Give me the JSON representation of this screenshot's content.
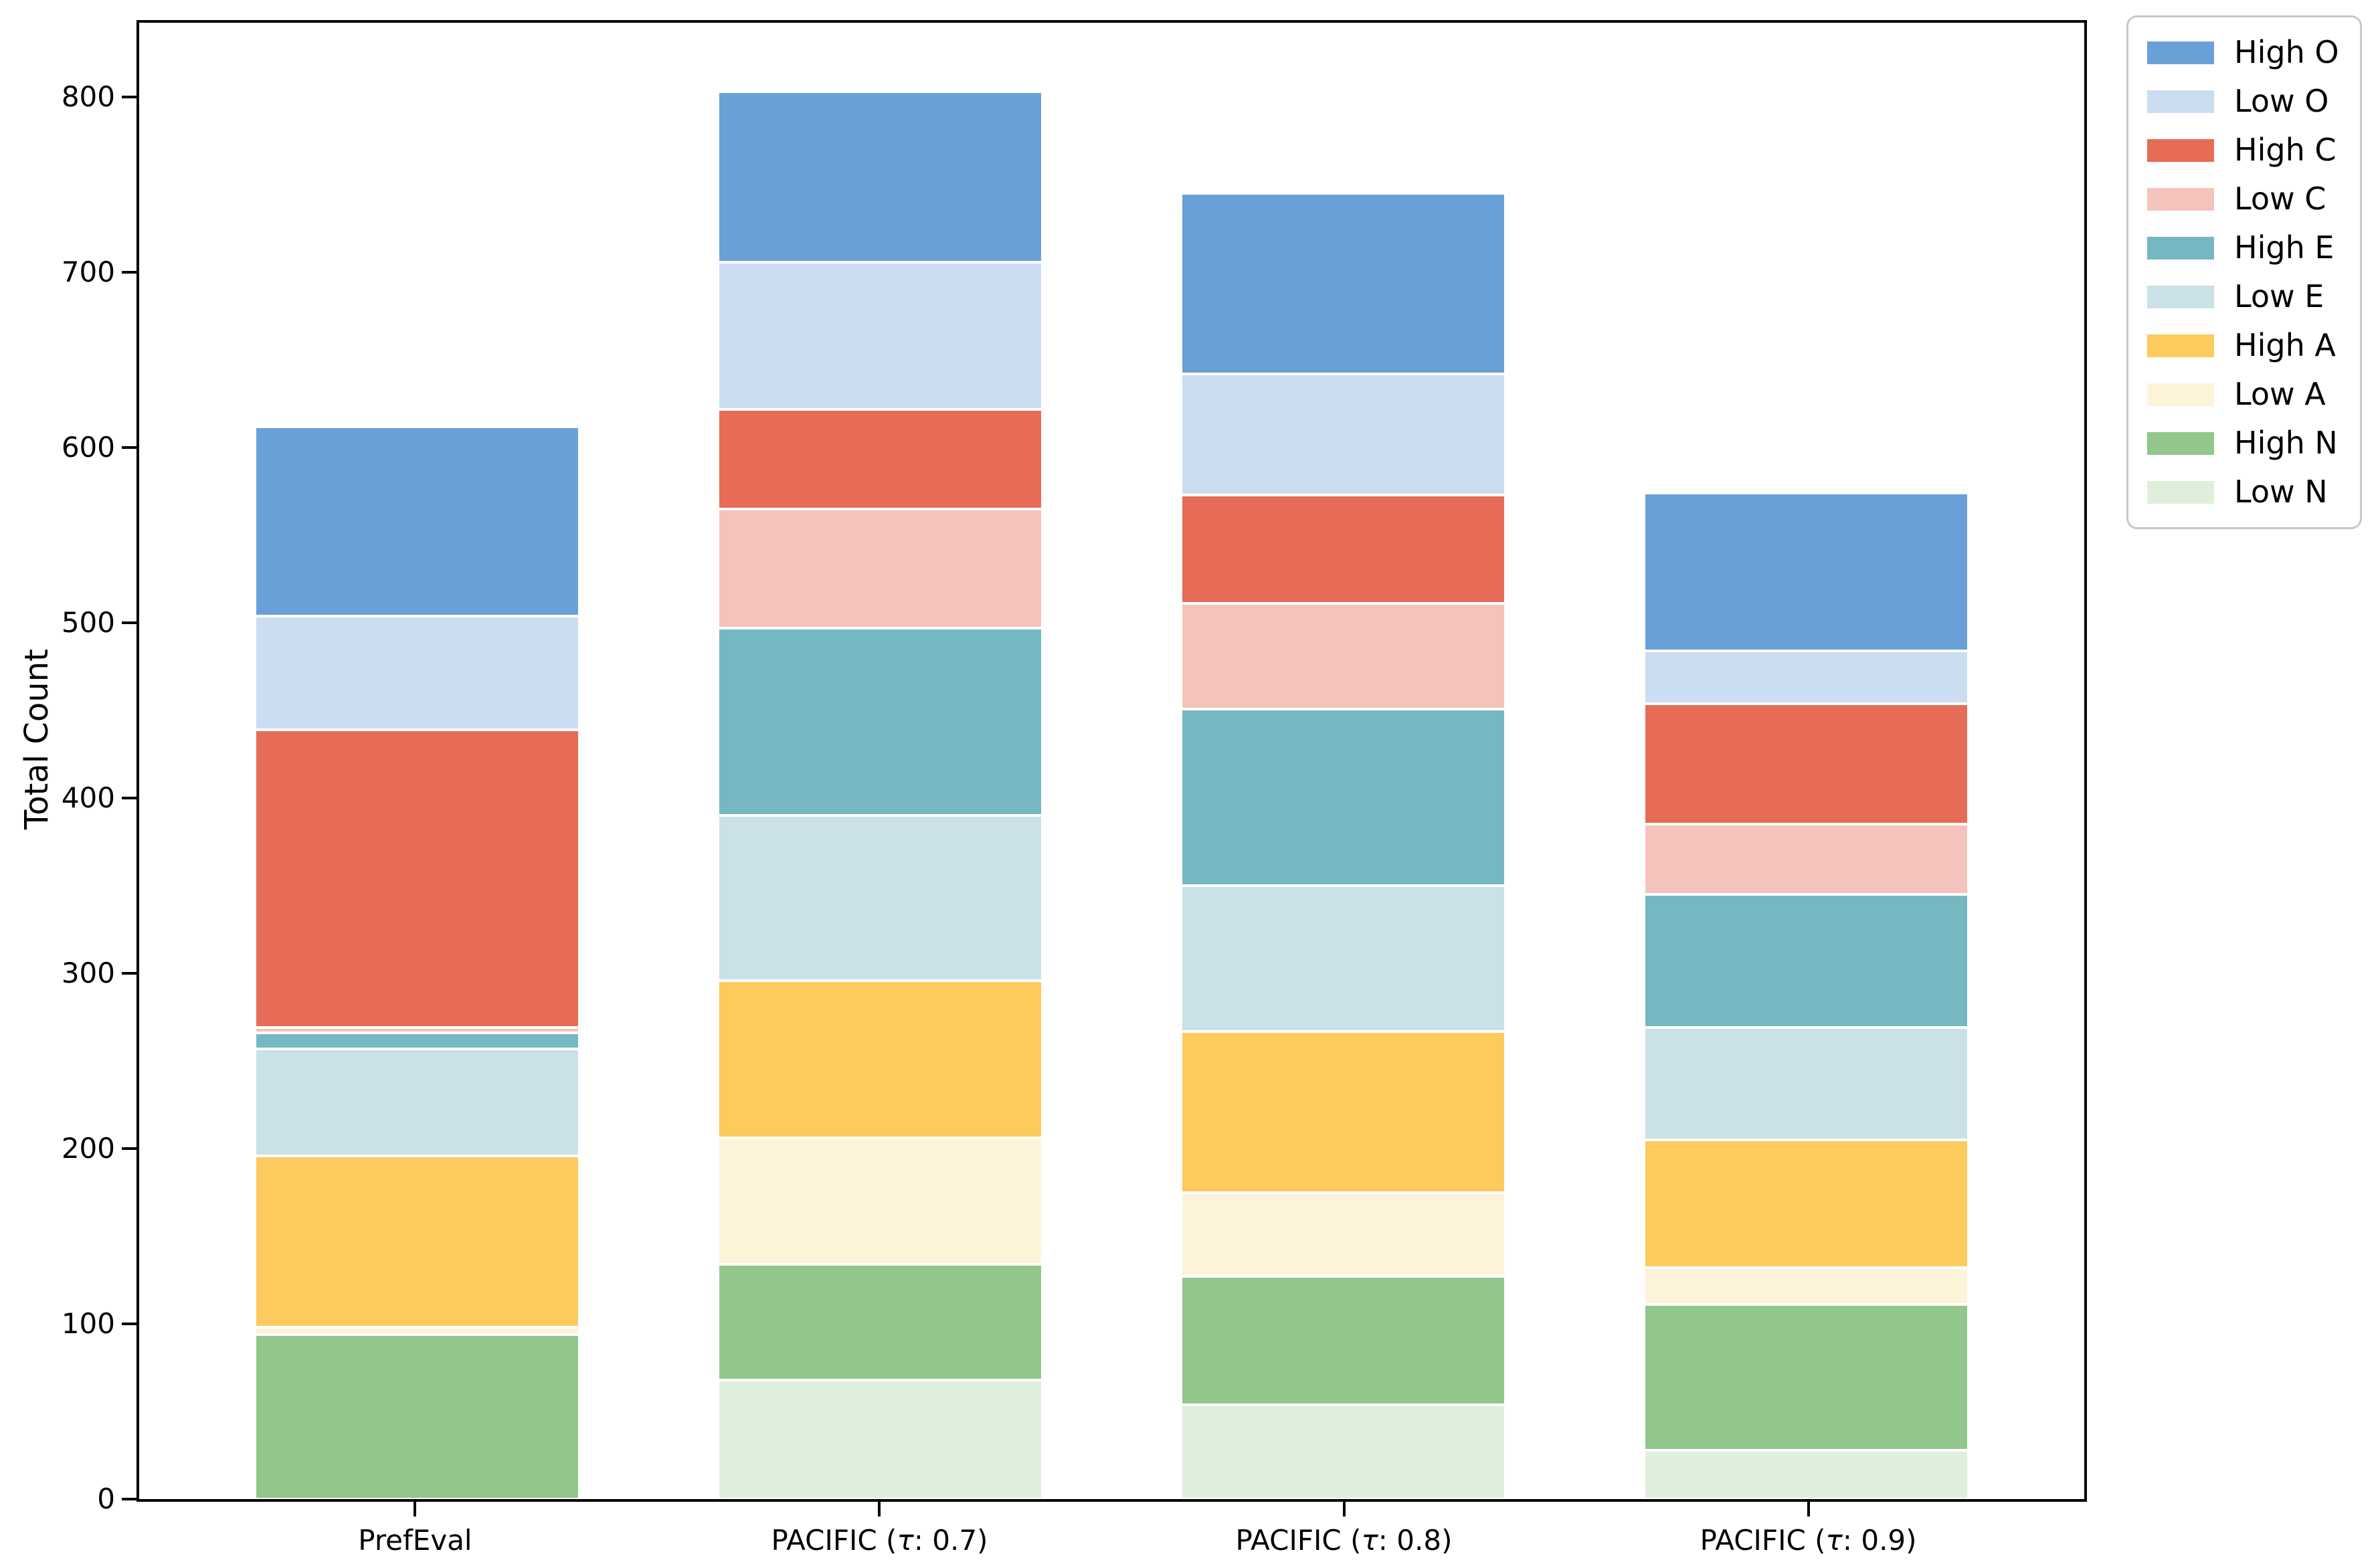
{
  "chart_data": {
    "type": "bar",
    "stacked": true,
    "title": "",
    "xlabel": "",
    "ylabel": "Total Count",
    "categories": [
      "PrefEval",
      "PACIFIC (τ: 0.7)",
      "PACIFIC (τ: 0.8)",
      "PACIFIC (τ: 0.9)"
    ],
    "series": [
      {
        "name": "High O",
        "color": "#6aa0d8",
        "values": [
          108,
          97,
          103,
          90
        ]
      },
      {
        "name": "Low O",
        "color": "#cbddf1",
        "values": [
          65,
          84,
          69,
          30
        ]
      },
      {
        "name": "High C",
        "color": "#e66c57",
        "values": [
          170,
          57,
          62,
          69
        ]
      },
      {
        "name": "Low C",
        "color": "#f4c3bc",
        "values": [
          3,
          68,
          60,
          40
        ]
      },
      {
        "name": "High E",
        "color": "#75b8c1",
        "values": [
          9,
          107,
          101,
          76
        ]
      },
      {
        "name": "Low E",
        "color": "#c9e1e7",
        "values": [
          61,
          94,
          83,
          64
        ]
      },
      {
        "name": "High A",
        "color": "#fdca5d",
        "values": [
          98,
          90,
          92,
          73
        ]
      },
      {
        "name": "Low A",
        "color": "#fcf3d9",
        "values": [
          4,
          72,
          48,
          21
        ]
      },
      {
        "name": "High N",
        "color": "#91c78b",
        "values": [
          94,
          66,
          73,
          83
        ]
      },
      {
        "name": "Low N",
        "color": "#e0efdb",
        "values": [
          0,
          68,
          54,
          28
        ]
      }
    ],
    "totals": [
      612,
      803,
      745,
      574
    ],
    "yticks": [
      0,
      100,
      200,
      300,
      400,
      500,
      600,
      700,
      800
    ],
    "ylim": [
      0,
      842.5
    ],
    "bar_width_fraction": 0.7,
    "legend_position": "outside-upper-right",
    "grid": false,
    "stack_order_bottom_to_top": [
      "Low N",
      "High N",
      "Low A",
      "High A",
      "Low E",
      "High E",
      "Low C",
      "High C",
      "Low O",
      "High O"
    ]
  }
}
